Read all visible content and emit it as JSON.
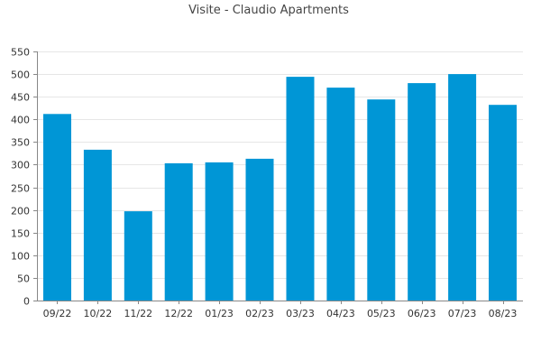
{
  "chart_data": {
    "type": "bar",
    "title": "Visite - Claudio Apartments",
    "xlabel": "",
    "ylabel": "",
    "categories": [
      "09/22",
      "10/22",
      "11/22",
      "12/22",
      "01/23",
      "02/23",
      "03/23",
      "04/23",
      "05/23",
      "06/23",
      "07/23",
      "08/23"
    ],
    "values": [
      412,
      333,
      197,
      303,
      305,
      313,
      494,
      470,
      444,
      480,
      500,
      432
    ],
    "ylim": [
      0,
      550
    ],
    "yticks": [
      0,
      50,
      100,
      150,
      200,
      250,
      300,
      350,
      400,
      450,
      500,
      550
    ],
    "grid": true,
    "legend": "none",
    "colors": {
      "bar": "#0096d6",
      "grid": "#e6e6e6",
      "axis": "#888888"
    }
  }
}
